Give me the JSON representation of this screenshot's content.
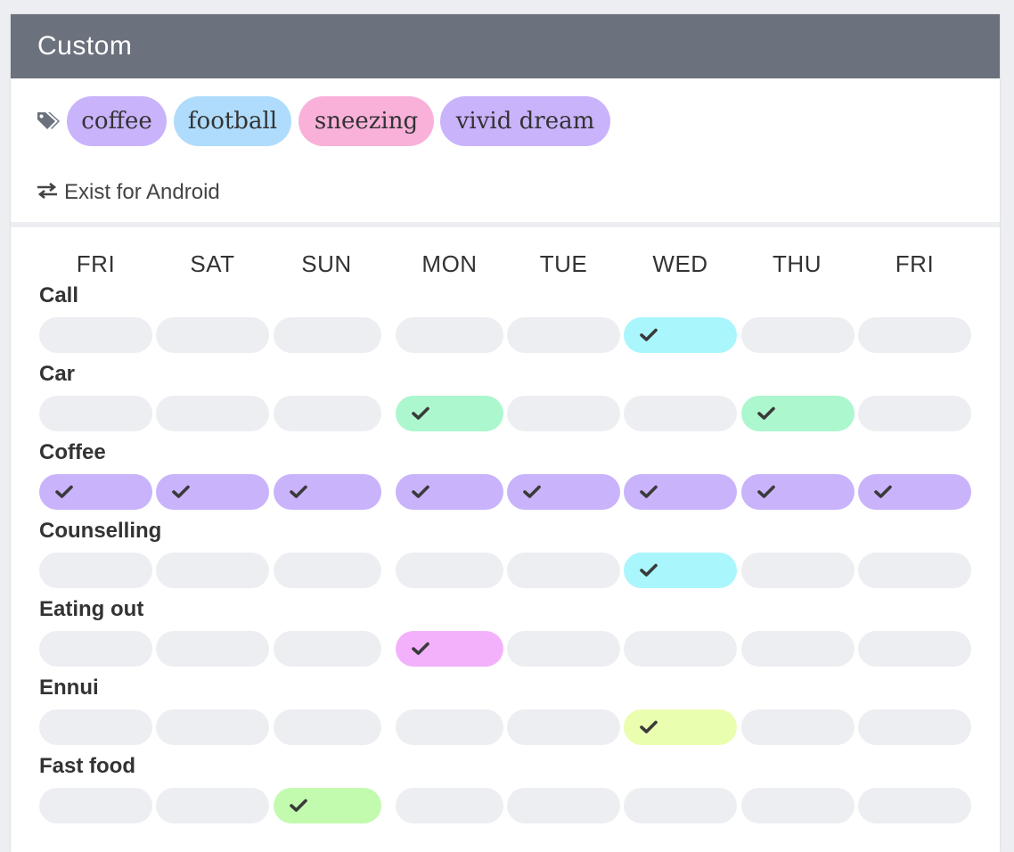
{
  "header": {
    "title": "Custom"
  },
  "tags": [
    {
      "label": "coffee",
      "color": "#c9b3fb"
    },
    {
      "label": "football",
      "color": "#afdcfc"
    },
    {
      "label": "sneezing",
      "color": "#f9b1d9"
    },
    {
      "label": "vivid dream",
      "color": "#c9b3fb"
    }
  ],
  "tags_icon": "tags-icon",
  "sync": {
    "icon": "exchange-icon",
    "label": "Exist for Android"
  },
  "days": [
    "FRI",
    "SAT",
    "SUN",
    "MON",
    "TUE",
    "WED",
    "THU",
    "FRI"
  ],
  "empty_color": "#edeef1",
  "rows": [
    {
      "label": "Call",
      "checked": [
        false,
        false,
        false,
        false,
        false,
        true,
        false,
        false
      ],
      "color": "#aaf6fd"
    },
    {
      "label": "Car",
      "checked": [
        false,
        false,
        false,
        true,
        false,
        false,
        true,
        false
      ],
      "color": "#acf7ce"
    },
    {
      "label": "Coffee",
      "checked": [
        true,
        true,
        true,
        true,
        true,
        true,
        true,
        true
      ],
      "color": "#c9b3fb"
    },
    {
      "label": "Counselling",
      "checked": [
        false,
        false,
        false,
        false,
        false,
        true,
        false,
        false
      ],
      "color": "#aaf6fd"
    },
    {
      "label": "Eating out",
      "checked": [
        false,
        false,
        false,
        true,
        false,
        false,
        false,
        false
      ],
      "color": "#f4b1fb"
    },
    {
      "label": "Ennui",
      "checked": [
        false,
        false,
        false,
        false,
        false,
        true,
        false,
        false
      ],
      "color": "#eafeb0"
    },
    {
      "label": "Fast food",
      "checked": [
        false,
        false,
        true,
        false,
        false,
        false,
        false,
        false
      ],
      "color": "#c2fbae"
    }
  ]
}
